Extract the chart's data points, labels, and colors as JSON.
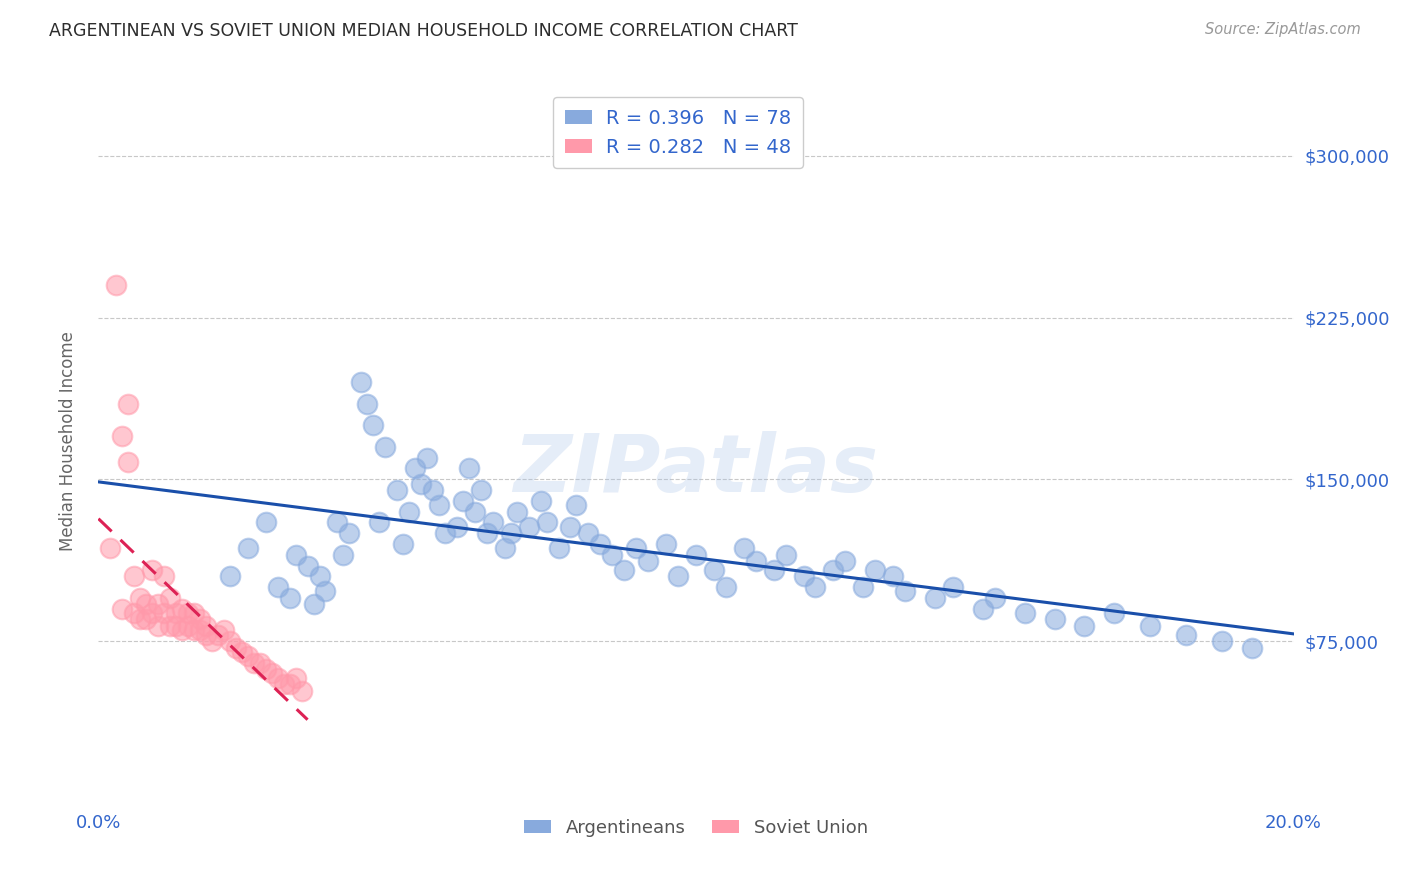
{
  "title": "ARGENTINEAN VS SOVIET UNION MEDIAN HOUSEHOLD INCOME CORRELATION CHART",
  "source": "Source: ZipAtlas.com",
  "ylabel": "Median Household Income",
  "xlim": [
    0.0,
    0.2
  ],
  "ylim": [
    0,
    335000
  ],
  "yticks": [
    75000,
    150000,
    225000,
    300000
  ],
  "ytick_labels": [
    "$75,000",
    "$150,000",
    "$225,000",
    "$300,000"
  ],
  "xticks": [
    0.0,
    0.04,
    0.08,
    0.12,
    0.16,
    0.2
  ],
  "xtick_labels": [
    "0.0%",
    "",
    "",
    "",
    "",
    "20.0%"
  ],
  "background_color": "#ffffff",
  "grid_color": "#c8c8c8",
  "watermark": "ZIPatlas",
  "blue_color": "#88aadd",
  "pink_color": "#ff99aa",
  "blue_line_color": "#1a4faa",
  "pink_line_color": "#dd2255",
  "R_blue": 0.396,
  "N_blue": 78,
  "R_pink": 0.282,
  "N_pink": 48,
  "blue_x": [
    0.022,
    0.025,
    0.028,
    0.03,
    0.032,
    0.033,
    0.035,
    0.036,
    0.037,
    0.038,
    0.04,
    0.041,
    0.042,
    0.044,
    0.045,
    0.046,
    0.047,
    0.048,
    0.05,
    0.051,
    0.052,
    0.053,
    0.054,
    0.055,
    0.056,
    0.057,
    0.058,
    0.06,
    0.061,
    0.062,
    0.063,
    0.064,
    0.065,
    0.066,
    0.068,
    0.069,
    0.07,
    0.072,
    0.074,
    0.075,
    0.077,
    0.079,
    0.08,
    0.082,
    0.084,
    0.086,
    0.088,
    0.09,
    0.092,
    0.095,
    0.097,
    0.1,
    0.103,
    0.105,
    0.108,
    0.11,
    0.113,
    0.115,
    0.118,
    0.12,
    0.123,
    0.125,
    0.128,
    0.13,
    0.133,
    0.135,
    0.14,
    0.143,
    0.148,
    0.15,
    0.155,
    0.16,
    0.165,
    0.17,
    0.176,
    0.182,
    0.188,
    0.193
  ],
  "blue_y": [
    105000,
    118000,
    130000,
    100000,
    95000,
    115000,
    110000,
    92000,
    105000,
    98000,
    130000,
    115000,
    125000,
    195000,
    185000,
    175000,
    130000,
    165000,
    145000,
    120000,
    135000,
    155000,
    148000,
    160000,
    145000,
    138000,
    125000,
    128000,
    140000,
    155000,
    135000,
    145000,
    125000,
    130000,
    118000,
    125000,
    135000,
    128000,
    140000,
    130000,
    118000,
    128000,
    138000,
    125000,
    120000,
    115000,
    108000,
    118000,
    112000,
    120000,
    105000,
    115000,
    108000,
    100000,
    118000,
    112000,
    108000,
    115000,
    105000,
    100000,
    108000,
    112000,
    100000,
    108000,
    105000,
    98000,
    95000,
    100000,
    90000,
    95000,
    88000,
    85000,
    82000,
    88000,
    82000,
    78000,
    75000,
    72000
  ],
  "pink_x": [
    0.002,
    0.003,
    0.004,
    0.004,
    0.005,
    0.005,
    0.006,
    0.006,
    0.007,
    0.007,
    0.008,
    0.008,
    0.009,
    0.009,
    0.01,
    0.01,
    0.011,
    0.011,
    0.012,
    0.012,
    0.013,
    0.013,
    0.014,
    0.014,
    0.015,
    0.015,
    0.016,
    0.016,
    0.017,
    0.017,
    0.018,
    0.018,
    0.019,
    0.02,
    0.021,
    0.022,
    0.023,
    0.024,
    0.025,
    0.026,
    0.027,
    0.028,
    0.029,
    0.03,
    0.031,
    0.032,
    0.033,
    0.034
  ],
  "pink_y": [
    118000,
    240000,
    170000,
    90000,
    185000,
    158000,
    105000,
    88000,
    95000,
    85000,
    92000,
    85000,
    108000,
    88000,
    92000,
    82000,
    105000,
    88000,
    95000,
    82000,
    88000,
    82000,
    90000,
    80000,
    88000,
    82000,
    88000,
    80000,
    85000,
    80000,
    82000,
    78000,
    75000,
    78000,
    80000,
    75000,
    72000,
    70000,
    68000,
    65000,
    65000,
    62000,
    60000,
    58000,
    55000,
    55000,
    58000,
    52000
  ],
  "legend_label_blue": "Argentineans",
  "legend_label_pink": "Soviet Union",
  "title_color": "#2d2d2d",
  "axis_label_color": "#666666",
  "tick_color_x": "#3366cc",
  "tick_color_y": "#3366cc",
  "legend_text_color": "#3366cc"
}
